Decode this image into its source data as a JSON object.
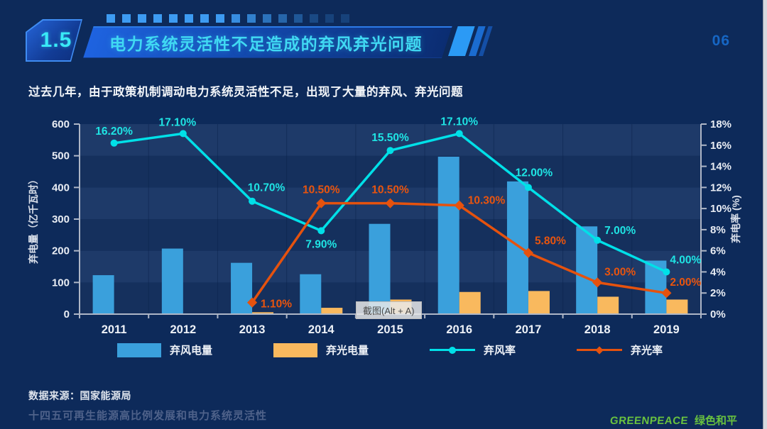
{
  "page": {
    "background": "#0D2A5A"
  },
  "header": {
    "section_number": "1.5",
    "title": "电力系统灵活性不足造成的弃风弃光问题",
    "page_number": "06"
  },
  "subtitle": "过去几年，由于政策机制调动电力系统灵活性不足，出现了大量的弃风、弃光问题",
  "chart_data": {
    "type": "bar+line",
    "title": "",
    "categories": [
      "2011",
      "2012",
      "2013",
      "2014",
      "2015",
      "2016",
      "2017",
      "2018",
      "2019"
    ],
    "left_axis": {
      "label": "弃电量（亿千瓦时）",
      "min": 0,
      "max": 600,
      "step": 100
    },
    "right_axis": {
      "label": "弃电率 (%)",
      "min": 0,
      "max": 18,
      "step": 2,
      "suffix": "%"
    },
    "grid": "striped-rows",
    "legend_position": "bottom",
    "series": [
      {
        "name": "弃风电量",
        "type": "bar",
        "axis": "left",
        "color": "#3AA0DC",
        "values": [
          123,
          207,
          162,
          126,
          285,
          497,
          419,
          277,
          169
        ]
      },
      {
        "name": "弃光电量",
        "type": "bar",
        "axis": "left",
        "color": "#F9B95E",
        "values": [
          null,
          null,
          6,
          20,
          46,
          70,
          73,
          55,
          46
        ]
      },
      {
        "name": "弃风率",
        "type": "line",
        "axis": "right",
        "color": "#00E0E8",
        "marker": "circle",
        "values": [
          16.2,
          17.1,
          10.7,
          7.9,
          15.5,
          17.1,
          12.0,
          7.0,
          4.0
        ],
        "labels": [
          "16.20%",
          "17.10%",
          "10.70%",
          "7.90%",
          "15.50%",
          "17.10%",
          "12.00%",
          "7.00%",
          "4.00%"
        ],
        "label_color": "#1FE4E4"
      },
      {
        "name": "弃光率",
        "type": "line",
        "axis": "right",
        "color": "#E5520E",
        "marker": "diamond",
        "values": [
          null,
          null,
          1.1,
          10.5,
          10.5,
          10.3,
          5.8,
          3.0,
          2.0
        ],
        "labels": [
          null,
          null,
          "1.10%",
          "10.50%",
          "10.50%",
          "10.30%",
          "5.80%",
          "3.00%",
          "2.00%"
        ],
        "label_color": "#E8540E"
      }
    ]
  },
  "overlay": {
    "screenshot_tooltip": "截图(Alt + A)"
  },
  "source_note": "数据来源：国家能源局",
  "footer": {
    "report_title": "十四五可再生能源高比例发展和电力系统灵活性",
    "logo_text_en": "GREENPEACE",
    "logo_text_cn": "绿色和平",
    "logo_color": "#69C23F"
  },
  "colors": {
    "accent_cyan": "#40D9F3",
    "wind_bar": "#3AA0DC",
    "solar_bar": "#F9B95E",
    "wind_line": "#00E0E8",
    "solar_line": "#E5520E",
    "band_light": "#1E3A69",
    "band_dark": "#15305D",
    "page_number": "#1666C4"
  }
}
